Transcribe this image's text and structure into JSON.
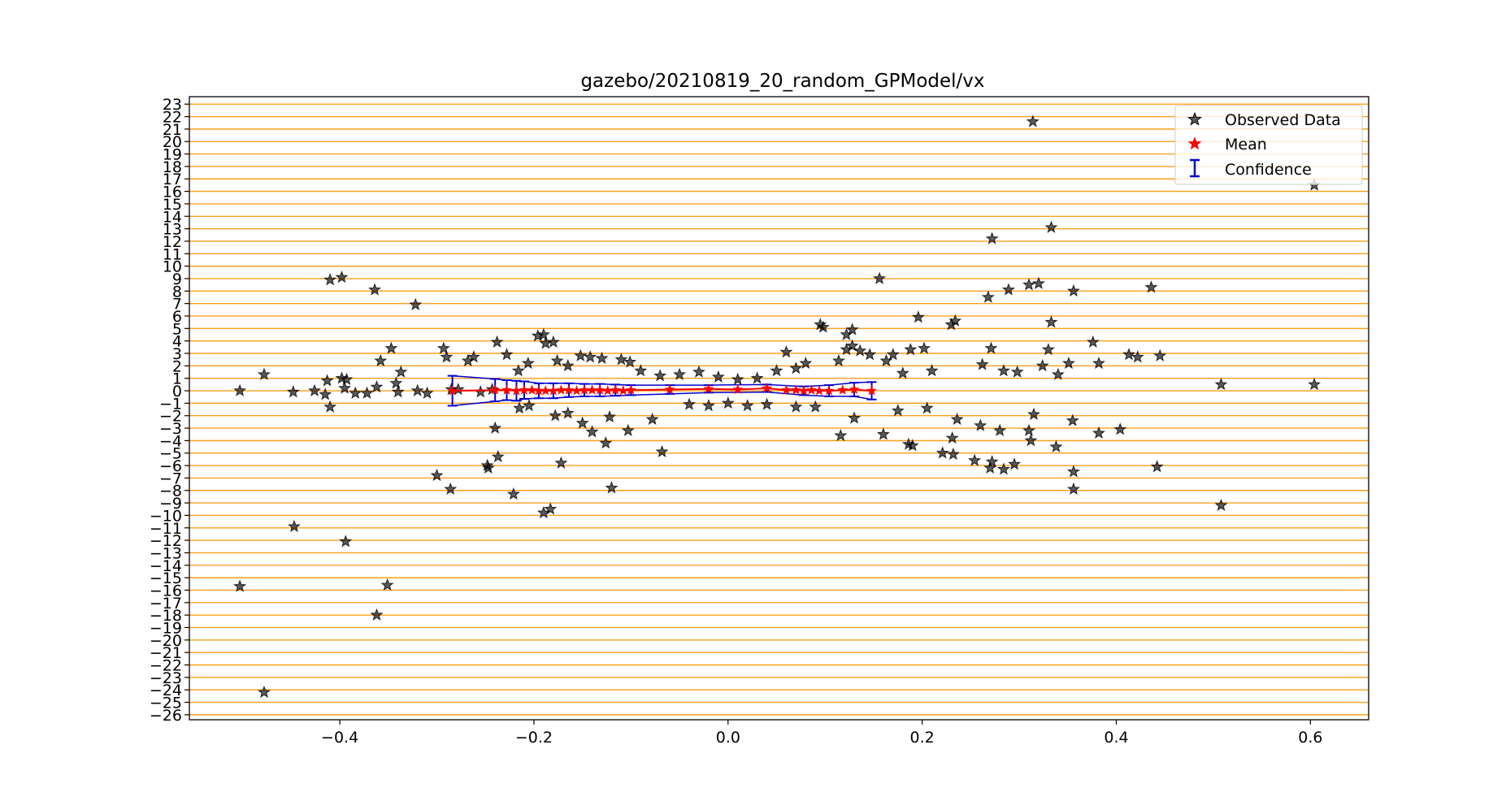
{
  "chart_data": {
    "type": "scatter",
    "title": "gazebo/20210819_20_random_GPModel/vx",
    "xlabel": "",
    "ylabel": "",
    "xlim": [
      -0.555,
      0.66
    ],
    "ylim": [
      -26.4,
      23.6
    ],
    "x_ticks": [
      -0.4,
      -0.2,
      0.0,
      0.2,
      0.4,
      0.6
    ],
    "x_tick_labels": [
      "−0.4",
      "−0.2",
      "0.0",
      "0.2",
      "0.4",
      "0.6"
    ],
    "y_ticks": [
      23,
      22,
      21,
      20,
      19,
      18,
      17,
      16,
      15,
      14,
      13,
      12,
      11,
      10,
      9,
      8,
      7,
      6,
      5,
      4,
      3,
      2,
      1,
      0,
      -1,
      -2,
      -3,
      -4,
      -5,
      -6,
      -7,
      -8,
      -9,
      -10,
      -11,
      -12,
      -13,
      -14,
      -15,
      -16,
      -17,
      -18,
      -19,
      -20,
      -21,
      -22,
      -23,
      -24,
      -25,
      -26
    ],
    "y_tick_labels": [
      "23",
      "22",
      "21",
      "20",
      "19",
      "18",
      "17",
      "16",
      "15",
      "14",
      "13",
      "12",
      "11",
      "10",
      "9",
      "8",
      "7",
      "6",
      "5",
      "4",
      "3",
      "2",
      "1",
      "0",
      "−1",
      "−2",
      "−3",
      "−4",
      "−5",
      "−6",
      "−7",
      "−8",
      "−9",
      "−10",
      "−11",
      "−12",
      "−13",
      "−14",
      "−15",
      "−16",
      "−17",
      "−18",
      "−19",
      "−20",
      "−21",
      "−22",
      "−23",
      "−24",
      "−25",
      "−26"
    ],
    "grid": "horizontal lines at each integer y, orange",
    "legend_position": "top-right",
    "colors": {
      "observed": "#000000",
      "mean": "#ff0000",
      "confidence": "#0000cc",
      "gridline": "#ff9f1a"
    },
    "series": [
      {
        "name": "Observed Data",
        "marker": "star",
        "points": [
          [
            -0.503,
            0.0
          ],
          [
            -0.478,
            1.3
          ],
          [
            -0.448,
            -0.1
          ],
          [
            -0.426,
            0.0
          ],
          [
            -0.413,
            0.8
          ],
          [
            -0.41,
            -1.3
          ],
          [
            -0.41,
            8.9
          ],
          [
            -0.398,
            9.1
          ],
          [
            -0.398,
            1.0
          ],
          [
            -0.395,
            0.2
          ],
          [
            -0.393,
            0.9
          ],
          [
            -0.364,
            8.1
          ],
          [
            -0.362,
            0.3
          ],
          [
            -0.358,
            2.4
          ],
          [
            -0.347,
            3.4
          ],
          [
            -0.342,
            0.6
          ],
          [
            -0.337,
            1.5
          ],
          [
            -0.322,
            6.9
          ],
          [
            -0.32,
            0.0
          ],
          [
            -0.293,
            3.4
          ],
          [
            -0.29,
            2.7
          ],
          [
            -0.285,
            0.1
          ],
          [
            -0.268,
            2.4
          ],
          [
            -0.262,
            2.7
          ],
          [
            -0.243,
            0.1
          ],
          [
            -0.238,
            3.9
          ],
          [
            -0.228,
            2.9
          ],
          [
            -0.216,
            1.6
          ],
          [
            -0.206,
            2.2
          ],
          [
            -0.196,
            4.4
          ],
          [
            -0.19,
            4.5
          ],
          [
            -0.188,
            3.8
          ],
          [
            -0.18,
            3.9
          ],
          [
            -0.176,
            2.4
          ],
          [
            -0.165,
            2.0
          ],
          [
            -0.152,
            2.8
          ],
          [
            -0.142,
            2.7
          ],
          [
            -0.13,
            2.6
          ],
          [
            -0.11,
            2.5
          ],
          [
            -0.101,
            2.3
          ],
          [
            -0.09,
            1.6
          ],
          [
            -0.07,
            1.2
          ],
          [
            -0.05,
            1.3
          ],
          [
            -0.03,
            1.5
          ],
          [
            -0.01,
            1.1
          ],
          [
            0.01,
            0.9
          ],
          [
            0.03,
            1.0
          ],
          [
            0.05,
            1.6
          ],
          [
            0.07,
            1.8
          ],
          [
            0.08,
            2.2
          ],
          [
            0.06,
            3.1
          ],
          [
            0.095,
            5.3
          ],
          [
            0.098,
            5.1
          ],
          [
            0.114,
            2.4
          ],
          [
            0.122,
            4.5
          ],
          [
            0.128,
            4.9
          ],
          [
            0.122,
            3.3
          ],
          [
            0.128,
            3.6
          ],
          [
            0.136,
            3.2
          ],
          [
            0.146,
            2.9
          ],
          [
            0.156,
            9.0
          ],
          [
            0.163,
            2.4
          ],
          [
            0.17,
            2.9
          ],
          [
            0.18,
            1.4
          ],
          [
            0.188,
            3.3
          ],
          [
            0.196,
            5.9
          ],
          [
            0.202,
            3.4
          ],
          [
            0.21,
            1.6
          ],
          [
            0.23,
            5.3
          ],
          [
            0.234,
            5.6
          ],
          [
            0.262,
            2.1
          ],
          [
            0.268,
            7.5
          ],
          [
            0.271,
            3.4
          ],
          [
            0.272,
            12.2
          ],
          [
            0.284,
            1.6
          ],
          [
            0.289,
            8.1
          ],
          [
            0.298,
            1.5
          ],
          [
            0.31,
            8.5
          ],
          [
            0.314,
            21.6
          ],
          [
            0.32,
            8.6
          ],
          [
            0.324,
            2.0
          ],
          [
            0.33,
            3.3
          ],
          [
            0.333,
            13.1
          ],
          [
            0.333,
            5.5
          ],
          [
            0.34,
            1.3
          ],
          [
            0.351,
            2.2
          ],
          [
            0.356,
            8.0
          ],
          [
            0.376,
            3.9
          ],
          [
            0.382,
            2.2
          ],
          [
            0.413,
            2.9
          ],
          [
            0.422,
            2.7
          ],
          [
            0.436,
            8.3
          ],
          [
            0.445,
            2.8
          ],
          [
            0.508,
            0.5
          ],
          [
            0.604,
            16.5
          ],
          [
            0.604,
            0.5
          ],
          [
            -0.415,
            -0.3
          ],
          [
            -0.384,
            -0.2
          ],
          [
            -0.372,
            -0.2
          ],
          [
            -0.34,
            -0.1
          ],
          [
            -0.31,
            -0.2
          ],
          [
            -0.278,
            0.1
          ],
          [
            -0.255,
            -0.1
          ],
          [
            -0.24,
            -3.0
          ],
          [
            -0.237,
            -5.3
          ],
          [
            -0.248,
            -6.0
          ],
          [
            -0.247,
            -6.2
          ],
          [
            -0.221,
            -8.3
          ],
          [
            -0.19,
            -9.8
          ],
          [
            -0.183,
            -9.5
          ],
          [
            -0.172,
            -5.8
          ],
          [
            -0.215,
            -1.4
          ],
          [
            -0.205,
            -1.2
          ],
          [
            -0.178,
            -2.0
          ],
          [
            -0.165,
            -1.8
          ],
          [
            -0.15,
            -2.6
          ],
          [
            -0.14,
            -3.3
          ],
          [
            -0.126,
            -4.2
          ],
          [
            -0.12,
            -7.8
          ],
          [
            -0.122,
            -2.1
          ],
          [
            -0.103,
            -3.2
          ],
          [
            -0.078,
            -2.3
          ],
          [
            -0.068,
            -4.9
          ],
          [
            -0.04,
            -1.1
          ],
          [
            -0.02,
            -1.2
          ],
          [
            0.0,
            -1.0
          ],
          [
            0.02,
            -1.2
          ],
          [
            0.04,
            -1.1
          ],
          [
            0.07,
            -1.3
          ],
          [
            0.09,
            -1.3
          ],
          [
            0.116,
            -3.6
          ],
          [
            0.13,
            -2.2
          ],
          [
            0.16,
            -3.5
          ],
          [
            0.175,
            -1.6
          ],
          [
            0.186,
            -4.3
          ],
          [
            0.19,
            -4.4
          ],
          [
            0.205,
            -1.4
          ],
          [
            0.221,
            -5.0
          ],
          [
            0.231,
            -3.8
          ],
          [
            0.232,
            -5.1
          ],
          [
            0.236,
            -2.3
          ],
          [
            0.254,
            -5.6
          ],
          [
            0.26,
            -2.8
          ],
          [
            0.27,
            -6.2
          ],
          [
            0.272,
            -5.7
          ],
          [
            0.28,
            -3.2
          ],
          [
            0.284,
            -6.3
          ],
          [
            0.295,
            -5.9
          ],
          [
            0.31,
            -3.2
          ],
          [
            0.315,
            -1.9
          ],
          [
            0.312,
            -4.0
          ],
          [
            0.338,
            -4.5
          ],
          [
            0.355,
            -2.4
          ],
          [
            0.356,
            -6.5
          ],
          [
            0.356,
            -7.9
          ],
          [
            0.382,
            -3.4
          ],
          [
            0.404,
            -3.1
          ],
          [
            0.442,
            -6.1
          ],
          [
            0.508,
            -9.2
          ],
          [
            -0.503,
            -15.7
          ],
          [
            -0.447,
            -10.9
          ],
          [
            -0.394,
            -12.1
          ],
          [
            -0.362,
            -18.0
          ],
          [
            -0.351,
            -15.6
          ],
          [
            -0.478,
            -24.2
          ],
          [
            -0.3,
            -6.8
          ],
          [
            -0.286,
            -7.9
          ]
        ]
      },
      {
        "name": "Mean",
        "marker": "star",
        "points": [
          [
            -0.284,
            0.0
          ],
          [
            -0.24,
            0.05
          ],
          [
            -0.228,
            0.05
          ],
          [
            -0.218,
            0.0
          ],
          [
            -0.21,
            0.05
          ],
          [
            -0.202,
            0.05
          ],
          [
            -0.195,
            0.0
          ],
          [
            -0.188,
            0.0
          ],
          [
            -0.18,
            0.0
          ],
          [
            -0.172,
            0.05
          ],
          [
            -0.164,
            0.05
          ],
          [
            -0.156,
            0.0
          ],
          [
            -0.148,
            0.05
          ],
          [
            -0.14,
            0.05
          ],
          [
            -0.132,
            0.05
          ],
          [
            -0.124,
            0.0
          ],
          [
            -0.116,
            0.05
          ],
          [
            -0.108,
            0.0
          ],
          [
            -0.1,
            0.05
          ],
          [
            -0.06,
            0.1
          ],
          [
            -0.02,
            0.15
          ],
          [
            0.01,
            0.1
          ],
          [
            0.04,
            0.2
          ],
          [
            0.06,
            0.05
          ],
          [
            0.07,
            0.05
          ],
          [
            0.078,
            0.0
          ],
          [
            0.086,
            0.05
          ],
          [
            0.094,
            0.0
          ],
          [
            0.104,
            0.0
          ],
          [
            0.118,
            0.05
          ],
          [
            0.13,
            0.1
          ],
          [
            0.148,
            0.0
          ]
        ]
      },
      {
        "name": "Confidence",
        "marker": "errorbar",
        "points": [
          [
            -0.284,
            0.0,
            1.2
          ],
          [
            -0.24,
            0.05,
            0.9
          ],
          [
            -0.228,
            0.05,
            0.8
          ],
          [
            -0.218,
            0.0,
            0.8
          ],
          [
            -0.21,
            0.05,
            0.7
          ],
          [
            -0.195,
            0.0,
            0.6
          ],
          [
            -0.18,
            0.0,
            0.6
          ],
          [
            -0.164,
            0.05,
            0.55
          ],
          [
            -0.148,
            0.05,
            0.5
          ],
          [
            -0.132,
            0.05,
            0.5
          ],
          [
            -0.116,
            0.05,
            0.45
          ],
          [
            -0.1,
            0.05,
            0.4
          ],
          [
            -0.06,
            0.1,
            0.35
          ],
          [
            -0.02,
            0.15,
            0.3
          ],
          [
            0.04,
            0.2,
            0.3
          ],
          [
            0.078,
            0.0,
            0.35
          ],
          [
            0.104,
            0.0,
            0.45
          ],
          [
            0.13,
            0.1,
            0.55
          ],
          [
            0.148,
            0.0,
            0.7
          ]
        ]
      }
    ],
    "legend": {
      "entries": [
        "Observed Data",
        "Mean",
        "Confidence"
      ]
    }
  }
}
